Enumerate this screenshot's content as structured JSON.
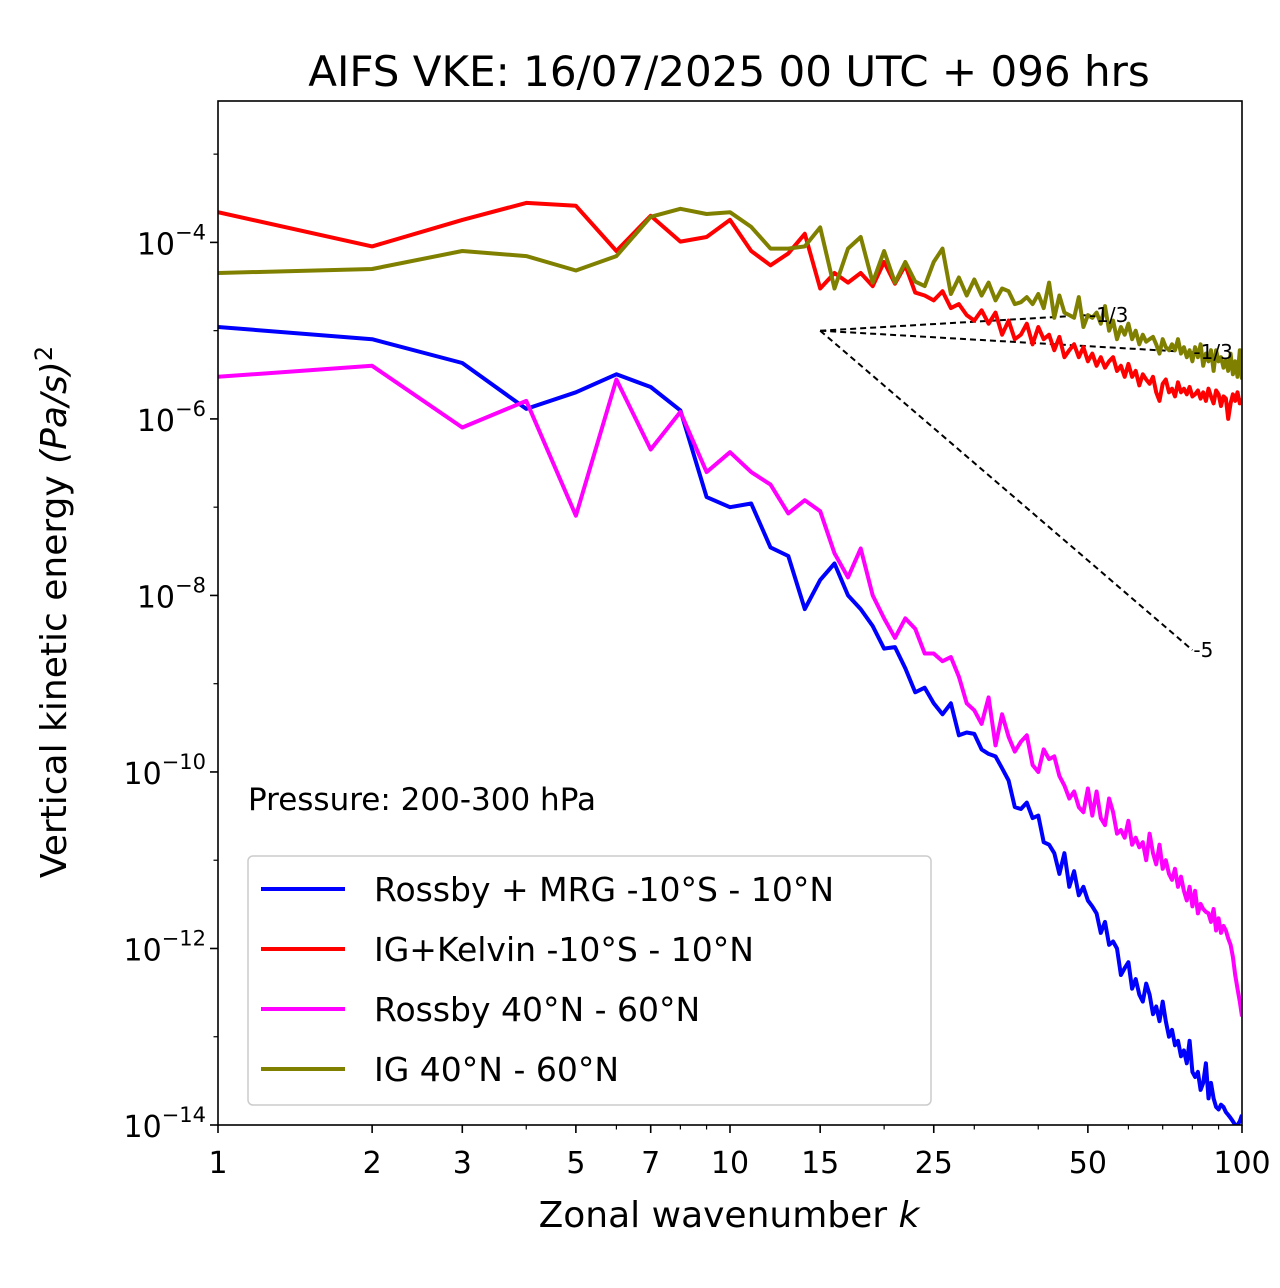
{
  "chart_data": {
    "type": "line",
    "title": "AIFS VKE: 16/07/2025 00 UTC + 096 hrs",
    "xlabel": "Zonal wavenumber k",
    "xlabel_main": "Zonal wavenumber ",
    "xlabel_var": "k",
    "ylabel": "Vertical kinetic energy (Pa/s)^2",
    "ylabel_main": "Vertical kinetic energy ",
    "ylabel_var": "(Pa/s)",
    "ylabel_exp": "2",
    "xscale": "log",
    "yscale": "log",
    "xlim": [
      1,
      100
    ],
    "ylim": [
      1e-14,
      0.004
    ],
    "x_ticks": [
      1,
      2,
      3,
      5,
      7,
      10,
      15,
      25,
      50,
      100
    ],
    "x_tick_labels": [
      "1",
      "2",
      "3",
      "5",
      "7",
      "10",
      "15",
      "25",
      "50",
      "100"
    ],
    "y_ticks": [
      {
        "value": 1e-14,
        "base": "10",
        "exp": "−14"
      },
      {
        "value": 1e-12,
        "base": "10",
        "exp": "−12"
      },
      {
        "value": 1e-10,
        "base": "10",
        "exp": "−10"
      },
      {
        "value": 1e-08,
        "base": "10",
        "exp": "−8"
      },
      {
        "value": 1e-06,
        "base": "10",
        "exp": "−6"
      },
      {
        "value": 0.0001,
        "base": "10",
        "exp": "−4"
      }
    ],
    "annotation": "Pressure: 200-300 hPa",
    "legend_position": "lower-left",
    "grid": false,
    "reference_lines": [
      {
        "label": "-1/3",
        "points": [
          [
            15,
            1e-05
          ],
          [
            50,
            1.5e-05
          ]
        ],
        "label_at": [
          50,
          1.5e-05
        ]
      },
      {
        "label": "-1/3",
        "points": [
          [
            15,
            1e-05
          ],
          [
            80,
            5.7e-06
          ]
        ],
        "label_at": [
          80,
          5.7e-06
        ]
      },
      {
        "label": "-5",
        "points": [
          [
            15,
            1e-05
          ],
          [
            80,
            2.4e-09
          ]
        ],
        "label_at": [
          80,
          2.4e-09
        ]
      }
    ],
    "series": [
      {
        "name": "Rossby + MRG -10°S - 10°N",
        "color": "#0000ff",
        "x": [
          1,
          2,
          3,
          4,
          5,
          6,
          7,
          8,
          9,
          10,
          11,
          12,
          13,
          14,
          15,
          16,
          17,
          18,
          19,
          20,
          21,
          22,
          23,
          24,
          25,
          26,
          27,
          28,
          29,
          30,
          31,
          32,
          33,
          34,
          35,
          36,
          37,
          38,
          39,
          40,
          41,
          42,
          43,
          44,
          45,
          46,
          47,
          48,
          49,
          50,
          51,
          52,
          53,
          54,
          55,
          56,
          57,
          58,
          59,
          60,
          61,
          62,
          63,
          64,
          65,
          66,
          67,
          68,
          69,
          70,
          71,
          72,
          73,
          74,
          75,
          76,
          77,
          78,
          79,
          80,
          81,
          82,
          83,
          84,
          85,
          86,
          87,
          88,
          89,
          90,
          91,
          92,
          93,
          94,
          95,
          96,
          97,
          98,
          99,
          100
        ],
        "y": [
          1.1e-05,
          8e-06,
          4.3e-06,
          1.3e-06,
          2e-06,
          3.2e-06,
          2.3e-06,
          1.25e-06,
          1.3e-07,
          1e-07,
          1.1e-07,
          3.5e-08,
          2.8e-08,
          7e-09,
          1.5e-08,
          2.3e-08,
          1e-08,
          7e-09,
          4.5e-09,
          2.5e-09,
          2.6e-09,
          1.5e-09,
          8e-10,
          9e-10,
          6e-10,
          4.5e-10,
          6e-10,
          2.6e-10,
          2.8e-10,
          2.7e-10,
          1.8e-10,
          1.6e-10,
          1.5e-10,
          1.1e-10,
          8e-11,
          4e-11,
          3.8e-11,
          4.5e-11,
          3e-11,
          3.2e-11,
          1.6e-11,
          1.5e-11,
          1.2e-11,
          7e-12,
          1.2e-11,
          5e-12,
          7.5e-12,
          4e-12,
          5e-12,
          3.5e-12,
          3e-12,
          2.5e-12,
          1.5e-12,
          2e-12,
          1.1e-12,
          1.2e-12,
          1e-12,
          5e-13,
          6e-13,
          7e-13,
          3.5e-13,
          4.5e-13,
          3e-13,
          2.5e-13,
          4e-13,
          3e-13,
          1.8e-13,
          2.2e-13,
          1.5e-13,
          2.5e-13,
          1.5e-13,
          1e-13,
          1.2e-13,
          8e-14,
          9e-14,
          6e-14,
          7e-14,
          5e-14,
          9e-14,
          4e-14,
          3.5e-14,
          4e-14,
          2.5e-14,
          3e-14,
          5e-14,
          2e-14,
          3e-14,
          2e-14,
          1.6e-14,
          1.5e-14,
          1.7e-14,
          1.6e-14,
          1.4e-14,
          1.3e-14,
          1.2e-14,
          1.1e-14,
          1e-14,
          1e-14,
          1.1e-14,
          1.3e-14
        ]
      },
      {
        "name": "IG+Kelvin -10°S - 10°N",
        "color": "#ff0000",
        "x": [
          1,
          2,
          3,
          4,
          5,
          6,
          7,
          8,
          9,
          10,
          11,
          12,
          13,
          14,
          15,
          16,
          17,
          18,
          19,
          20,
          21,
          22,
          23,
          24,
          25,
          26,
          27,
          28,
          29,
          30,
          31,
          32,
          33,
          34,
          35,
          36,
          37,
          38,
          39,
          40,
          41,
          42,
          43,
          44,
          45,
          46,
          47,
          48,
          49,
          50,
          51,
          52,
          53,
          54,
          55,
          56,
          57,
          58,
          59,
          60,
          61,
          62,
          63,
          64,
          65,
          66,
          67,
          68,
          69,
          70,
          71,
          72,
          73,
          74,
          75,
          76,
          77,
          78,
          79,
          80,
          81,
          82,
          83,
          84,
          85,
          86,
          87,
          88,
          89,
          90,
          91,
          92,
          93,
          94,
          95,
          96,
          97,
          98,
          99,
          100
        ],
        "y": [
          0.00022,
          9e-05,
          0.00018,
          0.00028,
          0.00026,
          8e-05,
          0.0002,
          0.000102,
          0.000115,
          0.00018,
          8e-05,
          5.5e-05,
          7.5e-05,
          0.000125,
          3e-05,
          4.5e-05,
          3.5e-05,
          4.5e-05,
          3.2e-05,
          6e-05,
          3.4e-05,
          5.5e-05,
          2.7e-05,
          2.5e-05,
          2.2e-05,
          2.8e-05,
          1.8e-05,
          2e-05,
          1.5e-05,
          1.3e-05,
          1.7e-05,
          1.2e-05,
          1.6e-05,
          9e-06,
          1.3e-05,
          8e-06,
          9e-06,
          1.2e-05,
          7e-06,
          1.1e-05,
          8e-06,
          9e-06,
          6e-06,
          8.5e-06,
          5e-06,
          6e-06,
          7e-06,
          5e-06,
          6.5e-06,
          4.5e-06,
          5.5e-06,
          4e-06,
          5e-06,
          3.8e-06,
          4.5e-06,
          5e-06,
          3.5e-06,
          4e-06,
          3e-06,
          4.2e-06,
          3e-06,
          3.5e-06,
          2.4e-06,
          3.2e-06,
          2.8e-06,
          2.5e-06,
          3e-06,
          2e-06,
          1.6e-06,
          2.5e-06,
          2.8e-06,
          2e-06,
          2.2e-06,
          1.8e-06,
          2.6e-06,
          2e-06,
          2.2e-06,
          1.9e-06,
          2.3e-06,
          1.8e-06,
          1.9e-06,
          2.1e-06,
          1.7e-06,
          2e-06,
          1.6e-06,
          2.2e-06,
          1.8e-06,
          1.5e-06,
          2.1e-06,
          1.9e-06,
          1.4e-06,
          1.8e-06,
          1.7e-06,
          1e-06,
          1.5e-06,
          1.9e-06,
          1.6e-06,
          2e-06,
          1.5e-06,
          1.7e-06
        ]
      },
      {
        "name": "Rossby 40°N - 60°N",
        "color": "#ff00ff",
        "x": [
          1,
          2,
          3,
          4,
          5,
          6,
          7,
          8,
          9,
          10,
          11,
          12,
          13,
          14,
          15,
          16,
          17,
          18,
          19,
          20,
          21,
          22,
          23,
          24,
          25,
          26,
          27,
          28,
          29,
          30,
          31,
          32,
          33,
          34,
          35,
          36,
          37,
          38,
          39,
          40,
          41,
          42,
          43,
          44,
          45,
          46,
          47,
          48,
          49,
          50,
          51,
          52,
          53,
          54,
          55,
          56,
          57,
          58,
          59,
          60,
          61,
          62,
          63,
          64,
          65,
          66,
          67,
          68,
          69,
          70,
          71,
          72,
          73,
          74,
          75,
          76,
          77,
          78,
          79,
          80,
          81,
          82,
          83,
          84,
          85,
          86,
          87,
          88,
          89,
          90,
          91,
          92,
          93,
          94,
          95,
          96,
          97,
          98,
          99,
          100
        ],
        "y": [
          3e-06,
          4e-06,
          8e-07,
          1.6e-06,
          8e-08,
          2.8e-06,
          4.5e-07,
          1.2e-06,
          2.5e-07,
          4.2e-07,
          2.5e-07,
          1.8e-07,
          8.5e-08,
          1.2e-07,
          9e-08,
          3e-08,
          1.6e-08,
          3.4e-08,
          1e-08,
          5.5e-09,
          3.3e-09,
          5.5e-09,
          4.2e-09,
          2.2e-09,
          2.2e-09,
          1.8e-09,
          2e-09,
          1.2e-09,
          6e-10,
          5e-10,
          3.5e-10,
          7e-10,
          2e-10,
          4.5e-10,
          2.5e-10,
          1.7e-10,
          2.2e-10,
          2.6e-10,
          1.2e-10,
          1e-10,
          1.8e-10,
          1.4e-10,
          1.5e-10,
          9e-11,
          7e-11,
          5e-11,
          6e-11,
          4e-11,
          3.5e-11,
          6.5e-11,
          3.2e-11,
          6e-11,
          3e-11,
          2.5e-11,
          5e-11,
          3.5e-11,
          2e-11,
          2.2e-11,
          1.8e-11,
          2.8e-11,
          1.5e-11,
          1.8e-11,
          1.4e-11,
          1.6e-11,
          1e-11,
          2e-11,
          1.2e-11,
          9e-12,
          1.5e-11,
          8e-12,
          1e-11,
          7e-12,
          6e-12,
          8e-12,
          5e-12,
          6.5e-12,
          4.5e-12,
          3.5e-12,
          5e-12,
          3e-12,
          4.5e-12,
          2.5e-12,
          3.2e-12,
          2.8e-12,
          2.6e-12,
          2.5e-12,
          2e-12,
          2.8e-12,
          1.6e-12,
          2.2e-12,
          1.5e-12,
          1.8e-12,
          1.6e-12,
          1.3e-12,
          1.1e-12,
          8e-13,
          5e-13,
          3.5e-13,
          2.5e-13,
          1.7e-13
        ]
      },
      {
        "name": "IG 40°N - 60°N",
        "color": "#808000",
        "x": [
          1,
          2,
          3,
          4,
          5,
          6,
          7,
          8,
          9,
          10,
          11,
          12,
          13,
          14,
          15,
          16,
          17,
          18,
          19,
          20,
          21,
          22,
          23,
          24,
          25,
          26,
          27,
          28,
          29,
          30,
          31,
          32,
          33,
          34,
          35,
          36,
          37,
          38,
          39,
          40,
          41,
          42,
          43,
          44,
          45,
          46,
          47,
          48,
          49,
          50,
          51,
          52,
          53,
          54,
          55,
          56,
          57,
          58,
          59,
          60,
          61,
          62,
          63,
          64,
          65,
          66,
          67,
          68,
          69,
          70,
          71,
          72,
          73,
          74,
          75,
          76,
          77,
          78,
          79,
          80,
          81,
          82,
          83,
          84,
          85,
          86,
          87,
          88,
          89,
          90,
          91,
          92,
          93,
          94,
          95,
          96,
          97,
          98,
          99,
          100
        ],
        "y": [
          4.5e-05,
          5e-05,
          8e-05,
          7e-05,
          4.8e-05,
          7e-05,
          0.000195,
          0.00024,
          0.00021,
          0.00022,
          0.00015,
          8.5e-05,
          8.5e-05,
          9e-05,
          0.000148,
          3e-05,
          8.5e-05,
          0.000115,
          3.5e-05,
          8e-05,
          3.5e-05,
          6e-05,
          3.6e-05,
          3.2e-05,
          6e-05,
          8.5e-05,
          2.6e-05,
          4e-05,
          2.5e-05,
          3.8e-05,
          2.5e-05,
          3.5e-05,
          2.2e-05,
          3e-05,
          2.8e-05,
          2e-05,
          2.1e-05,
          2.4e-05,
          2e-05,
          2.6e-05,
          1.8e-05,
          3.5e-05,
          1.4e-05,
          2.5e-05,
          1.6e-05,
          1.5e-05,
          1.4e-05,
          2.4e-05,
          1.1e-05,
          1.5e-05,
          1.4e-05,
          1.6e-05,
          1.2e-05,
          1.9e-05,
          1e-05,
          1.3e-05,
          8e-06,
          1.1e-05,
          9e-06,
          1.2e-05,
          8e-06,
          1e-05,
          7e-06,
          9e-06,
          7.5e-06,
          8e-06,
          8.5e-06,
          7e-06,
          5.5e-06,
          8e-06,
          6.5e-06,
          6e-06,
          7e-06,
          6e-06,
          8e-06,
          5.5e-06,
          6.5e-06,
          5e-06,
          6e-06,
          4.5e-06,
          6.5e-06,
          5e-06,
          7e-06,
          4e-06,
          5.5e-06,
          4.5e-06,
          6e-06,
          3.5e-06,
          6e-06,
          4.5e-06,
          5e-06,
          3.8e-06,
          4.6e-06,
          3.5e-06,
          5.5e-06,
          3.2e-06,
          4.5e-06,
          3e-06,
          6e-06,
          2.8e-06
        ]
      }
    ]
  }
}
